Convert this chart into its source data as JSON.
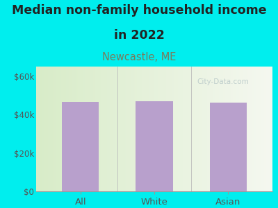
{
  "categories": [
    "All",
    "White",
    "Asian"
  ],
  "values": [
    46500,
    47000,
    46200
  ],
  "bar_color": "#b8a0cc",
  "outer_bg_color": "#00EEEE",
  "plot_bg_gradient_left": "#d8ecc8",
  "plot_bg_gradient_right": "#f0f5ec",
  "title_line1": "Median non-family household income",
  "title_line2": "in 2022",
  "subtitle": "Newcastle, ME",
  "subtitle_color": "#7a7a5a",
  "title_color": "#222222",
  "title_fontsize": 12.5,
  "subtitle_fontsize": 10.5,
  "ylabel_ticks": [
    0,
    20000,
    40000,
    60000
  ],
  "ylabel_labels": [
    "$0",
    "$20k",
    "$40k",
    "$60k"
  ],
  "ylim": [
    0,
    65000
  ],
  "tick_color": "#555555",
  "watermark": "City-Data.com",
  "watermark_color": "#b8c8c8"
}
